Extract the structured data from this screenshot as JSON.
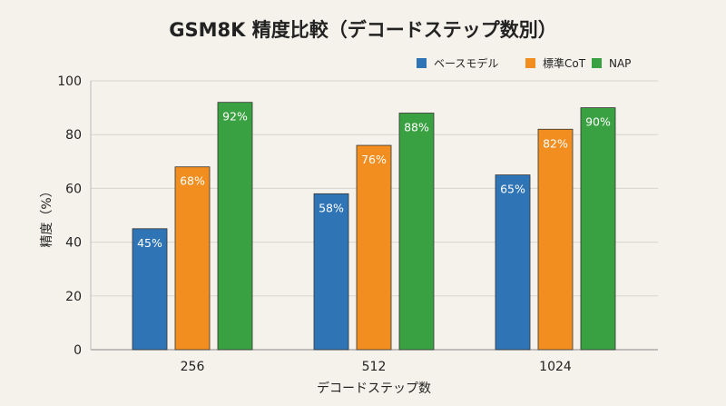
{
  "chart_data": {
    "type": "bar",
    "title": "GSM8K 精度比較（デコードステップ数別）",
    "xlabel": "デコードステップ数",
    "ylabel": "精度（%）",
    "categories": [
      "256",
      "512",
      "1024"
    ],
    "ylim": [
      0,
      100
    ],
    "yticks": [
      0,
      20,
      40,
      60,
      80,
      100
    ],
    "grid": true,
    "legend_position": "top-right",
    "series": [
      {
        "name": "ベースモデル",
        "color": "#2f75b5",
        "values": [
          45,
          58,
          65
        ],
        "labels": [
          "45%",
          "58%",
          "65%"
        ]
      },
      {
        "name": "標準CoT",
        "color": "#f28e1f",
        "values": [
          68,
          76,
          82
        ],
        "labels": [
          "68%",
          "76%",
          "82%"
        ]
      },
      {
        "name": "NAP",
        "color": "#3aa142",
        "values": [
          92,
          88,
          90
        ],
        "labels": [
          "92%",
          "88%",
          "90%"
        ]
      }
    ]
  }
}
